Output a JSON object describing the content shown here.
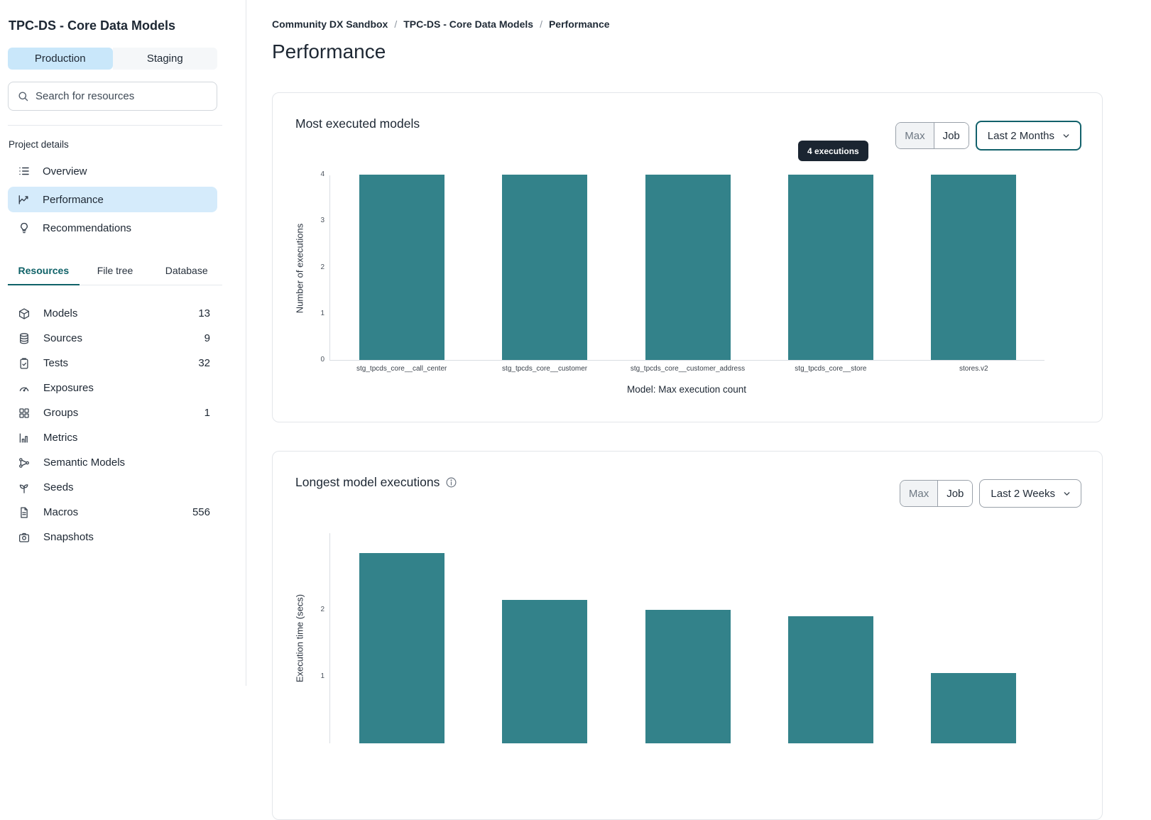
{
  "sidebar": {
    "title": "TPC-DS - Core Data Models",
    "env_toggle": [
      "Production",
      "Staging"
    ],
    "selected_env": "Production",
    "search_placeholder": "Search for resources",
    "project_details_label": "Project details",
    "nav": [
      {
        "label": "Overview",
        "icon": "list-icon",
        "active": false
      },
      {
        "label": "Performance",
        "icon": "chart-line-icon",
        "active": true
      },
      {
        "label": "Recommendations",
        "icon": "lightbulb-icon",
        "active": false
      }
    ],
    "tabs": [
      {
        "label": "Resources",
        "active": true
      },
      {
        "label": "File tree",
        "active": false
      },
      {
        "label": "Database",
        "active": false
      }
    ],
    "resources": [
      {
        "label": "Models",
        "count": "13",
        "icon": "cube-icon"
      },
      {
        "label": "Sources",
        "count": "9",
        "icon": "database-icon"
      },
      {
        "label": "Tests",
        "count": "32",
        "icon": "clipboard-check-icon"
      },
      {
        "label": "Exposures",
        "count": "",
        "icon": "gauge-icon"
      },
      {
        "label": "Groups",
        "count": "1",
        "icon": "grid-icon"
      },
      {
        "label": "Metrics",
        "count": "",
        "icon": "bar-chart-icon"
      },
      {
        "label": "Semantic Models",
        "count": "",
        "icon": "share-network-icon"
      },
      {
        "label": "Seeds",
        "count": "",
        "icon": "sprout-icon"
      },
      {
        "label": "Macros",
        "count": "556",
        "icon": "file-lines-icon"
      },
      {
        "label": "Snapshots",
        "count": "",
        "icon": "camera-icon"
      }
    ]
  },
  "breadcrumb": {
    "items": [
      "Community DX Sandbox",
      "TPC-DS - Core Data Models",
      "Performance"
    ],
    "separator": "/"
  },
  "page_title": "Performance",
  "cards": [
    {
      "title": "Most executed models",
      "toggle": [
        "Max",
        "Job"
      ],
      "selected_toggle": "Max",
      "range": "Last 2 Months",
      "tooltip": "4 executions"
    },
    {
      "title": "Longest model executions",
      "toggle": [
        "Max",
        "Job"
      ],
      "selected_toggle": "Max",
      "range": "Last 2 Weeks"
    }
  ],
  "chart_data": [
    {
      "type": "bar",
      "title": "Most executed models",
      "categories": [
        "stg_tpcds_core__call_center",
        "stg_tpcds_core__customer",
        "stg_tpcds_core__customer_address",
        "stg_tpcds_core__store",
        "stores.v2"
      ],
      "values": [
        4,
        4,
        4,
        4,
        4
      ],
      "xlabel": "Model: Max execution count",
      "ylabel": "Number of executions",
      "ylim": [
        0,
        4
      ],
      "yticks": [
        0,
        1,
        2,
        3,
        4
      ],
      "bar_color": "#33828a",
      "grid": false,
      "tooltip": {
        "text": "4 executions",
        "bar_index": 3
      }
    },
    {
      "type": "bar",
      "title": "Longest model executions",
      "categories": [],
      "values": [
        2.85,
        2.15,
        2.0,
        1.9,
        1.05
      ],
      "xlabel": "",
      "ylabel": "Execution time (secs)",
      "ylim": [
        0,
        3
      ],
      "yticks": [
        1,
        2
      ],
      "bar_color": "#33828a",
      "grid": false,
      "clipped_bottom": true
    }
  ],
  "colors": {
    "accent_teal": "#0f6268",
    "bar_teal": "#33828a",
    "active_blue": "#d5ebfb",
    "tooltip_bg": "#1b2531"
  }
}
